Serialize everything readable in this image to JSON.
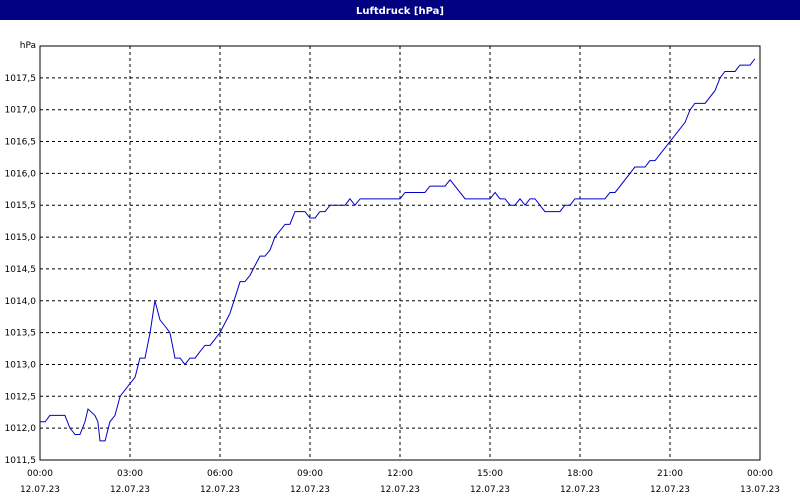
{
  "chart_data": {
    "type": "line",
    "title": "Luftdruck [hPa]",
    "y_unit": "hPa",
    "x": [
      0,
      0.17,
      0.33,
      0.67,
      0.83,
      1,
      1.17,
      1.33,
      1.5,
      1.6,
      1.83,
      1.93,
      2,
      2.17,
      2.33,
      2.5,
      2.67,
      3,
      3.17,
      3.33,
      3.5,
      3.67,
      3.83,
      4,
      4.17,
      4.33,
      4.5,
      4.67,
      4.83,
      5,
      5.17,
      5.33,
      5.5,
      5.67,
      6,
      6.33,
      6.67,
      6.83,
      7,
      7.33,
      7.5,
      7.67,
      7.83,
      8,
      8.17,
      8.33,
      8.5,
      8.83,
      9,
      9.17,
      9.33,
      9.5,
      9.67,
      10.17,
      10.33,
      10.5,
      10.67,
      12,
      12.17,
      12.83,
      13,
      13.5,
      13.67,
      14.17,
      15,
      15.17,
      15.33,
      15.5,
      15.67,
      15.83,
      16,
      16.17,
      16.33,
      16.5,
      16.83,
      17.33,
      17.5,
      17.67,
      17.83,
      18.83,
      19,
      19.17,
      19.83,
      20.17,
      20.33,
      20.5,
      21,
      21.5,
      21.67,
      21.83,
      22.17,
      22.5,
      22.67,
      22.83,
      23.17,
      23.33,
      23.67,
      23.83
    ],
    "series": [
      {
        "name": "Luftdruck",
        "color": "#0000cc",
        "values": [
          1012.1,
          1012.1,
          1012.2,
          1012.2,
          1012.2,
          1012.0,
          1011.9,
          1011.9,
          1012.1,
          1012.3,
          1012.2,
          1012.1,
          1011.8,
          1011.8,
          1012.1,
          1012.2,
          1012.5,
          1012.7,
          1012.8,
          1013.1,
          1013.1,
          1013.5,
          1014.0,
          1013.7,
          1013.6,
          1013.5,
          1013.1,
          1013.1,
          1013.0,
          1013.1,
          1013.1,
          1013.2,
          1013.3,
          1013.3,
          1013.5,
          1013.8,
          1014.3,
          1014.3,
          1014.4,
          1014.7,
          1014.7,
          1014.8,
          1015.0,
          1015.1,
          1015.2,
          1015.2,
          1015.4,
          1015.4,
          1015.3,
          1015.3,
          1015.4,
          1015.4,
          1015.5,
          1015.5,
          1015.6,
          1015.5,
          1015.6,
          1015.6,
          1015.7,
          1015.7,
          1015.8,
          1015.8,
          1015.9,
          1015.6,
          1015.6,
          1015.7,
          1015.6,
          1015.6,
          1015.5,
          1015.5,
          1015.6,
          1015.5,
          1015.6,
          1015.6,
          1015.4,
          1015.4,
          1015.5,
          1015.5,
          1015.6,
          1015.6,
          1015.7,
          1015.7,
          1016.1,
          1016.1,
          1016.2,
          1016.2,
          1016.5,
          1016.8,
          1017.0,
          1017.1,
          1017.1,
          1017.3,
          1017.5,
          1017.6,
          1017.6,
          1017.7,
          1017.7,
          1017.8
        ]
      }
    ],
    "xlim": [
      0,
      24
    ],
    "xticks": [
      {
        "value": 0,
        "label": "00:00 12.07.23"
      },
      {
        "value": 3,
        "label": "03:00 12.07.23"
      },
      {
        "value": 6,
        "label": "06:00 12.07.23"
      },
      {
        "value": 9,
        "label": "09:00 12.07.23"
      },
      {
        "value": 12,
        "label": "12:00 12.07.23"
      },
      {
        "value": 15,
        "label": "15:00 12.07.23"
      },
      {
        "value": 18,
        "label": "18:00 12.07.23"
      },
      {
        "value": 21,
        "label": "21:00 12.07.23"
      },
      {
        "value": 24,
        "label": "00:00 13.07.23"
      }
    ],
    "ylim": [
      1011.5,
      1018
    ],
    "yticks": [
      {
        "value": 1011.5,
        "label": "1011,5"
      },
      {
        "value": 1012,
        "label": "1012,0"
      },
      {
        "value": 1012.5,
        "label": "1012,5"
      },
      {
        "value": 1013,
        "label": "1013,0"
      },
      {
        "value": 1013.5,
        "label": "1013,5"
      },
      {
        "value": 1014,
        "label": "1014,0"
      },
      {
        "value": 1014.5,
        "label": "1014,5"
      },
      {
        "value": 1015,
        "label": "1015,0"
      },
      {
        "value": 1015.5,
        "label": "1015,5"
      },
      {
        "value": 1016,
        "label": "1016,0"
      },
      {
        "value": 1016.5,
        "label": "1016,5"
      },
      {
        "value": 1017,
        "label": "1017,0"
      },
      {
        "value": 1017.5,
        "label": "1017,5"
      }
    ],
    "grid": true
  }
}
